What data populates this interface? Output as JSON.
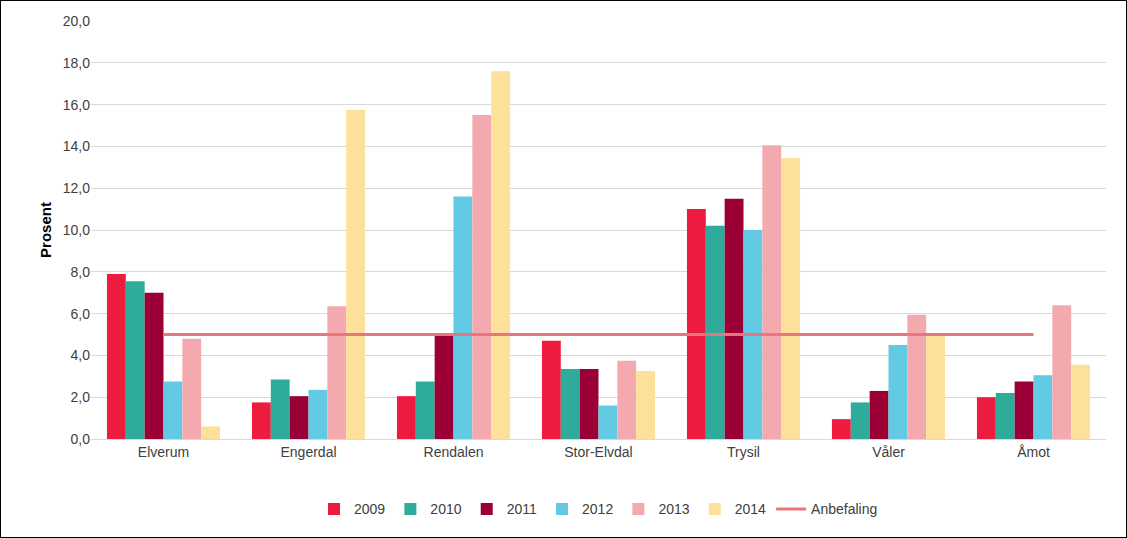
{
  "chart_data": {
    "type": "bar",
    "y_label": "Prosent",
    "categories": [
      "Elverum",
      "Engerdal",
      "Rendalen",
      "Stor-Elvdal",
      "Trysil",
      "Våler",
      "Åmot"
    ],
    "series": [
      {
        "name": "2009",
        "type": "bar",
        "color": "#ED1B3D",
        "values": [
          7.9,
          1.75,
          2.05,
          4.7,
          11.0,
          0.95,
          2.0
        ]
      },
      {
        "name": "2010",
        "type": "bar",
        "color": "#2EAB9B",
        "values": [
          7.55,
          2.85,
          2.75,
          3.35,
          10.2,
          1.75,
          2.2
        ]
      },
      {
        "name": "2011",
        "type": "bar",
        "color": "#9A0036",
        "values": [
          7.0,
          2.05,
          4.95,
          3.35,
          11.5,
          2.3,
          2.75
        ]
      },
      {
        "name": "2012",
        "type": "bar",
        "color": "#63CAE3",
        "values": [
          2.75,
          2.35,
          11.6,
          1.6,
          10.0,
          4.5,
          3.05
        ]
      },
      {
        "name": "2013",
        "type": "bar",
        "color": "#F4A9AF",
        "values": [
          4.8,
          6.35,
          15.5,
          3.75,
          14.05,
          5.95,
          6.4
        ]
      },
      {
        "name": "2014",
        "type": "bar",
        "color": "#FDE19A",
        "values": [
          0.6,
          15.75,
          17.6,
          3.25,
          13.45,
          5.0,
          3.55
        ]
      },
      {
        "name": "Anbefaling",
        "type": "line",
        "color": "#E8767E",
        "values": [
          5,
          5,
          5,
          5,
          5,
          5,
          5
        ]
      }
    ],
    "ylim": [
      0,
      20
    ],
    "yticks": [
      {
        "value": 0,
        "label": "0,0"
      },
      {
        "value": 2,
        "label": "2,0"
      },
      {
        "value": 4,
        "label": "4,0"
      },
      {
        "value": 6,
        "label": "6,0"
      },
      {
        "value": 8,
        "label": "8,0"
      },
      {
        "value": 10,
        "label": "10,0"
      },
      {
        "value": 12,
        "label": "12,0"
      },
      {
        "value": 14,
        "label": "14,0"
      },
      {
        "value": 16,
        "label": "16,0"
      },
      {
        "value": 18,
        "label": "18,0"
      },
      {
        "value": 20,
        "label": "20,0"
      }
    ],
    "grid": true,
    "legend": "bottom"
  }
}
